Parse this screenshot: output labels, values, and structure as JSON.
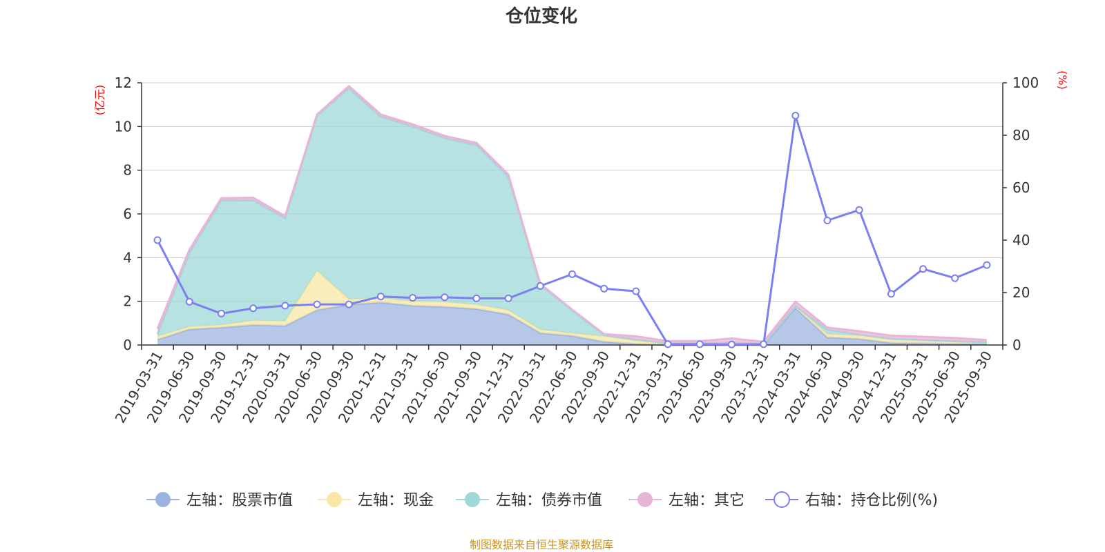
{
  "chart_data": {
    "type": "area",
    "title": "仓位变化",
    "left_axis": {
      "unit": "(亿元)",
      "ylim": [
        0,
        12
      ],
      "ticks": [
        "0",
        "2",
        "4",
        "6",
        "8",
        "10",
        "12"
      ]
    },
    "right_axis": {
      "unit": "(%)",
      "ylim": [
        0,
        100
      ],
      "ticks": [
        "0",
        "20",
        "40",
        "60",
        "80",
        "100"
      ]
    },
    "categories": [
      "2019-03-31",
      "2019-06-30",
      "2019-09-30",
      "2019-12-31",
      "2020-03-31",
      "2020-06-30",
      "2020-09-30",
      "2020-12-31",
      "2021-03-31",
      "2021-06-30",
      "2021-09-30",
      "2021-12-31",
      "2022-03-31",
      "2022-06-30",
      "2022-09-30",
      "2022-12-31",
      "2023-03-31",
      "2023-06-30",
      "2023-09-30",
      "2023-12-31",
      "2024-03-31",
      "2024-06-30",
      "2024-09-30",
      "2024-12-31",
      "2025-03-31",
      "2025-06-30",
      "2025-09-30"
    ],
    "grid": true,
    "legend_position": "bottom",
    "series": [
      {
        "name": "左轴：股票市值",
        "axis": "left",
        "color": "#9db4e0",
        "values": [
          0.25,
          0.72,
          0.8,
          0.92,
          0.88,
          1.6,
          1.85,
          1.95,
          1.8,
          1.75,
          1.65,
          1.4,
          0.55,
          0.42,
          0.15,
          0.05,
          0.0,
          0.0,
          0.0,
          0.0,
          1.7,
          0.35,
          0.28,
          0.1,
          0.08,
          0.05,
          0.05
        ]
      },
      {
        "name": "左轴：现金",
        "axis": "left",
        "color": "#f8e7a6",
        "values": [
          0.15,
          0.12,
          0.12,
          0.2,
          0.22,
          1.8,
          0.25,
          0.2,
          0.2,
          0.22,
          0.2,
          0.2,
          0.15,
          0.12,
          0.25,
          0.15,
          0.08,
          0.08,
          0.1,
          0.05,
          0.08,
          0.15,
          0.15,
          0.18,
          0.15,
          0.12,
          0.08
        ]
      },
      {
        "name": "左轴：债券市值",
        "axis": "left",
        "color": "#9fd8d8",
        "values": [
          0.1,
          3.4,
          5.7,
          5.5,
          4.7,
          7.1,
          9.65,
          8.3,
          8.0,
          7.5,
          7.3,
          6.1,
          2.05,
          1.05,
          0.05,
          0.05,
          0.0,
          0.0,
          0.0,
          0.0,
          0.0,
          0.2,
          0.05,
          0.0,
          0.0,
          0.0,
          0.0
        ]
      },
      {
        "name": "左轴：其它",
        "axis": "left",
        "color": "#e8b5d8",
        "values": [
          0.25,
          0.12,
          0.1,
          0.12,
          0.1,
          0.05,
          0.1,
          0.1,
          0.1,
          0.1,
          0.1,
          0.1,
          0.05,
          0.03,
          0.05,
          0.15,
          0.1,
          0.1,
          0.2,
          0.1,
          0.2,
          0.1,
          0.15,
          0.15,
          0.15,
          0.15,
          0.1
        ]
      },
      {
        "name": "右轴：持仓比例(%)",
        "axis": "right",
        "color": "#7b7ff0",
        "type": "line",
        "values": [
          40,
          16.5,
          12,
          14,
          15,
          15.5,
          15.5,
          18.5,
          18,
          18.2,
          17.8,
          17.8,
          22.5,
          27,
          21.5,
          20.5,
          0.3,
          0.3,
          0.2,
          0.3,
          87.5,
          47.5,
          51.5,
          19.5,
          29,
          25.5,
          30.5
        ]
      }
    ]
  },
  "footer": {
    "source": "制图数据来自恒生聚源数据库"
  }
}
